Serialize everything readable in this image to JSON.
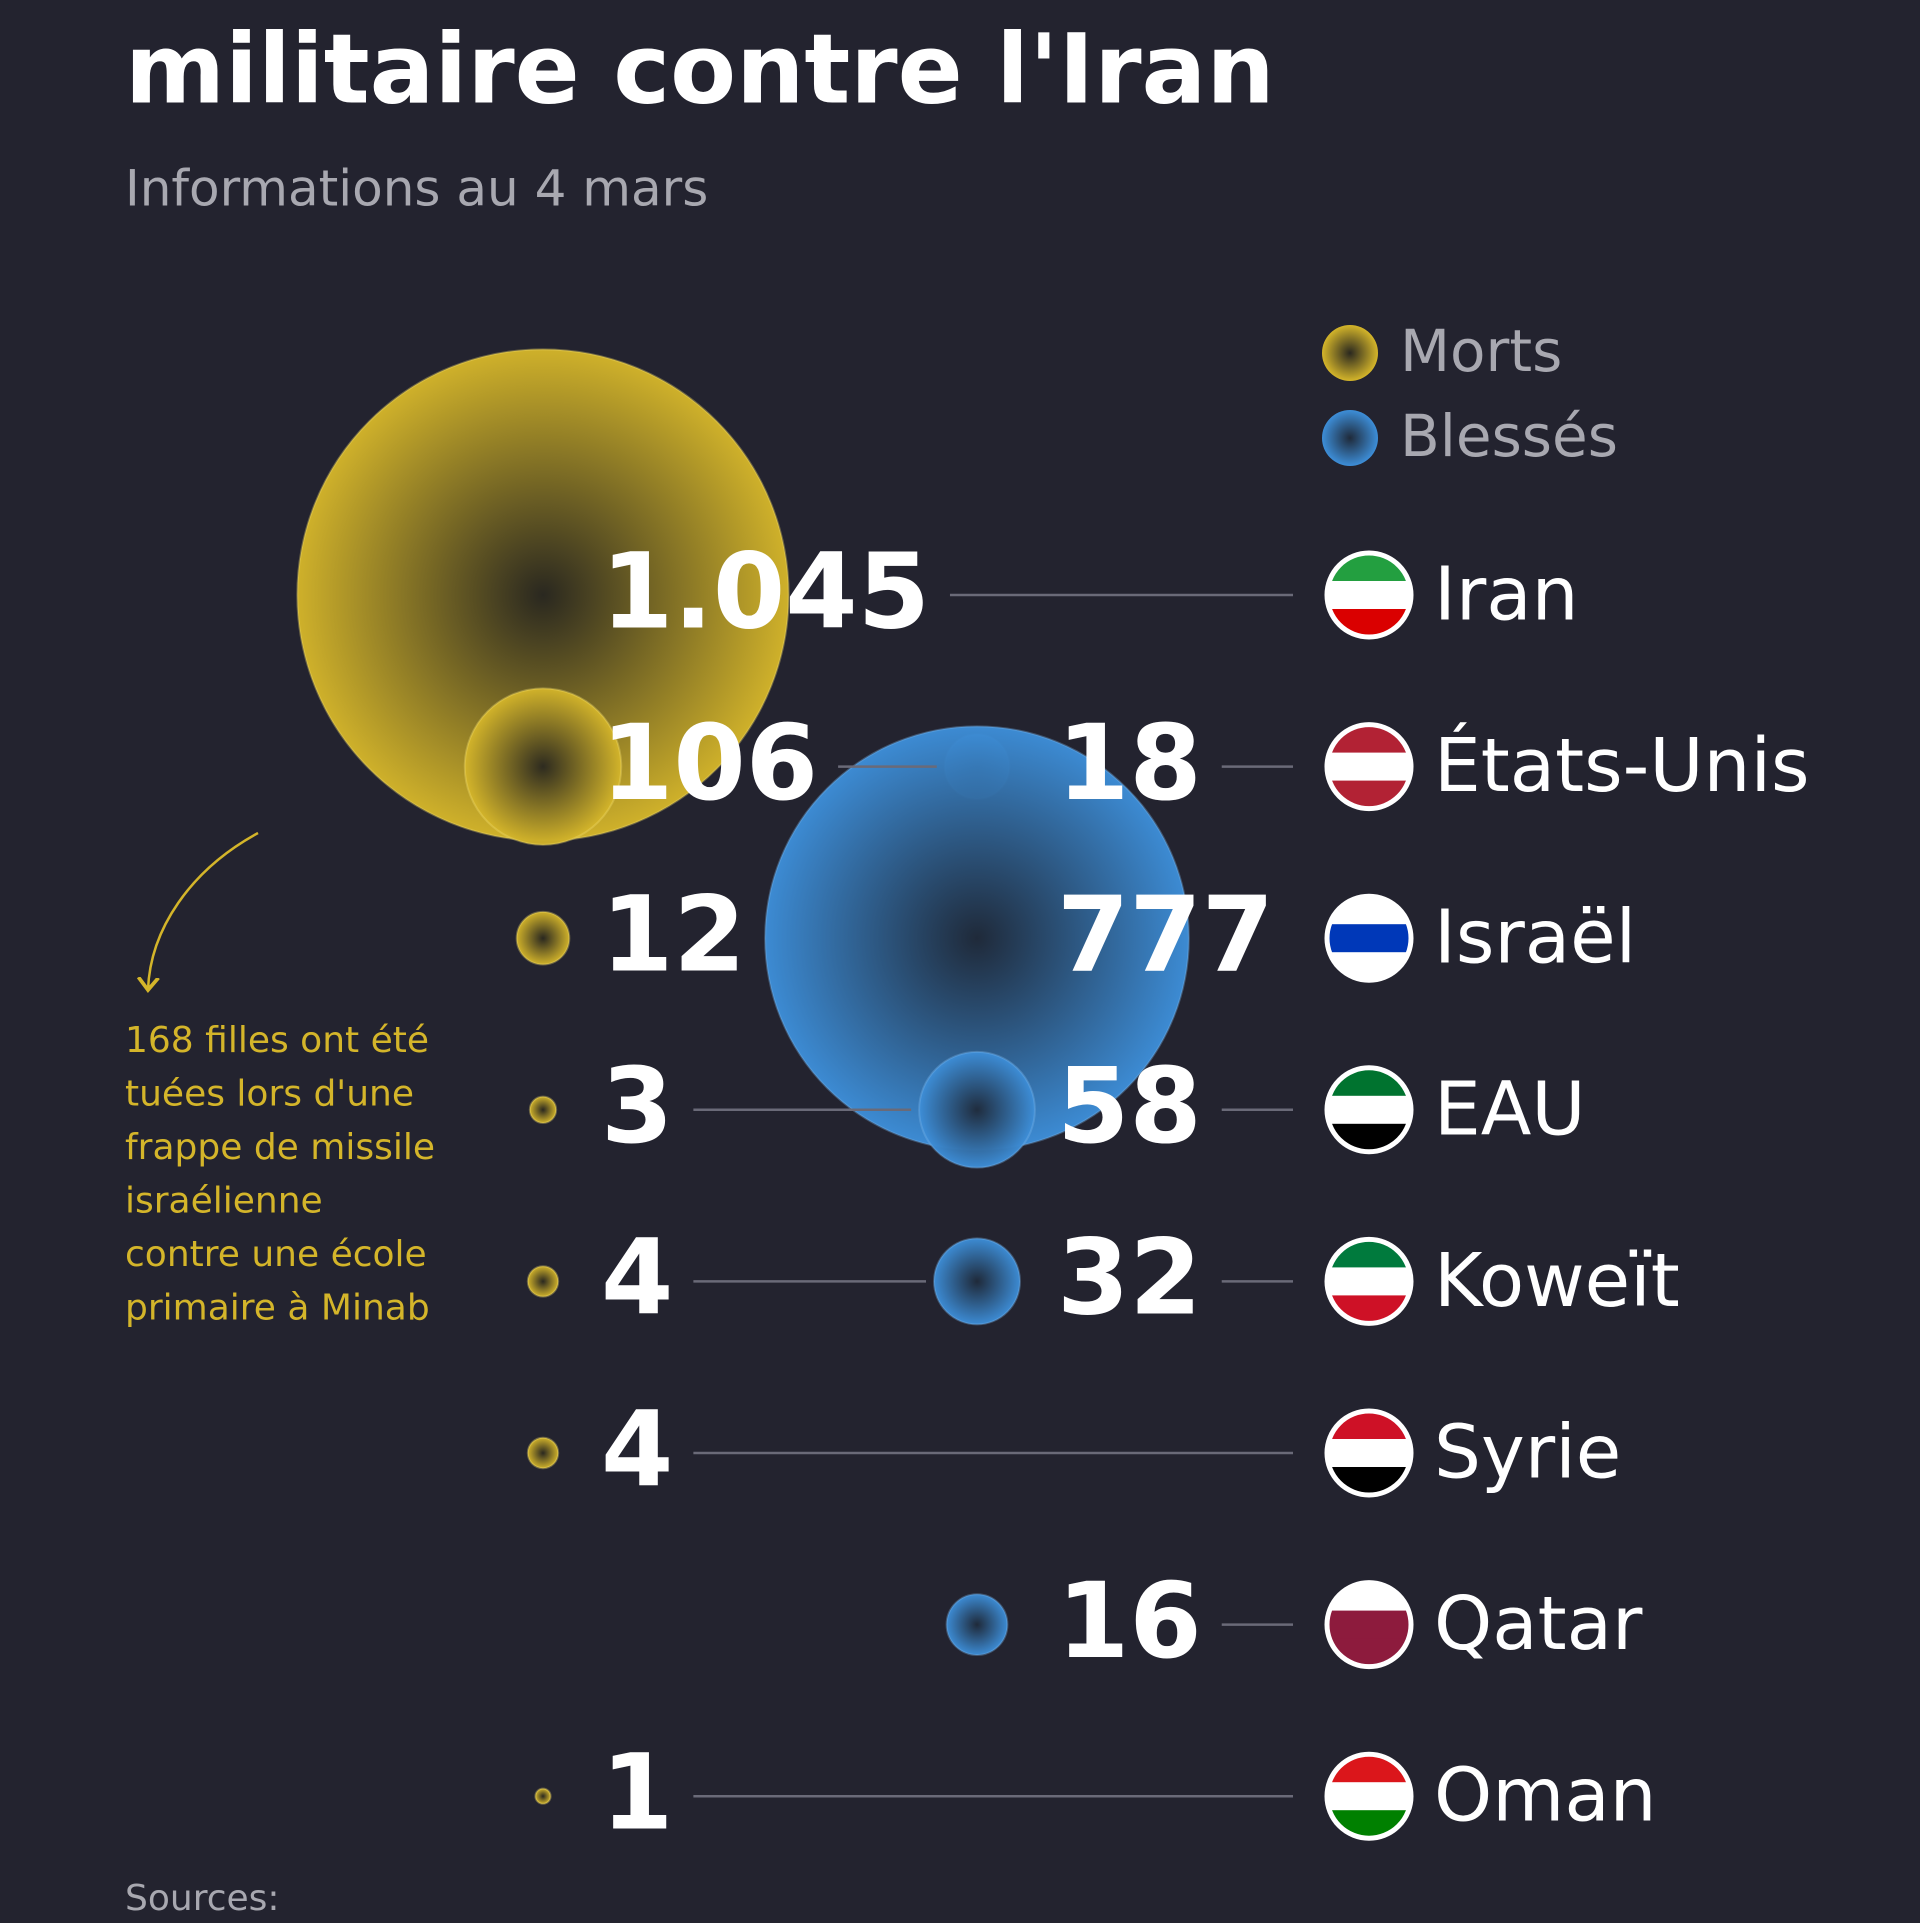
{
  "chart_data": {
    "type": "bubble",
    "title": "militaire contre l'Iran",
    "subtitle": "Informations au 4 mars",
    "categories": [
      "Iran",
      "États-Unis",
      "Israël",
      "EAU",
      "Koweït",
      "Syrie",
      "Qatar",
      "Oman"
    ],
    "series": [
      {
        "name": "Morts",
        "color": "#d4b52a",
        "values": [
          1045,
          106,
          12,
          3,
          4,
          4,
          null,
          1
        ],
        "value_labels": [
          "1.045",
          "106",
          "12",
          "3",
          "4",
          "4",
          null,
          "1"
        ]
      },
      {
        "name": "Blessés",
        "color": "#3d8ed8",
        "values": [
          null,
          18,
          777,
          58,
          32,
          null,
          16,
          null
        ]
      }
    ],
    "annotation": [
      "168 filles ont été",
      "tuées lors d'une",
      "frappe de missile",
      "israélienne",
      "contre une école",
      "primaire à Minab"
    ],
    "source": "Sources:"
  }
}
